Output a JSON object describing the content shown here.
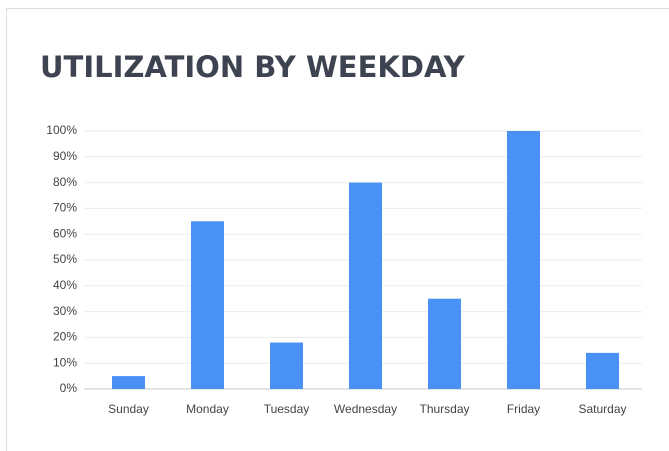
{
  "chart_data": {
    "type": "bar",
    "title": "UTILIZATION BY WEEKDAY",
    "categories": [
      "Sunday",
      "Monday",
      "Tuesday",
      "Wednesday",
      "Thursday",
      "Friday",
      "Saturday"
    ],
    "values": [
      5,
      65,
      18,
      80,
      35,
      100,
      14
    ],
    "color": "#4a91f6",
    "ylim": [
      0,
      100
    ],
    "yticks": [
      {
        "value": 0,
        "label": "0%"
      },
      {
        "value": 10,
        "label": "10%"
      },
      {
        "value": 20,
        "label": "20%"
      },
      {
        "value": 30,
        "label": "30%"
      },
      {
        "value": 40,
        "label": "40%"
      },
      {
        "value": 50,
        "label": "50%"
      },
      {
        "value": 60,
        "label": "60%"
      },
      {
        "value": 70,
        "label": "70%"
      },
      {
        "value": 80,
        "label": "80%"
      },
      {
        "value": 90,
        "label": "90%"
      },
      {
        "value": 100,
        "label": "100%"
      }
    ],
    "grid": true
  }
}
